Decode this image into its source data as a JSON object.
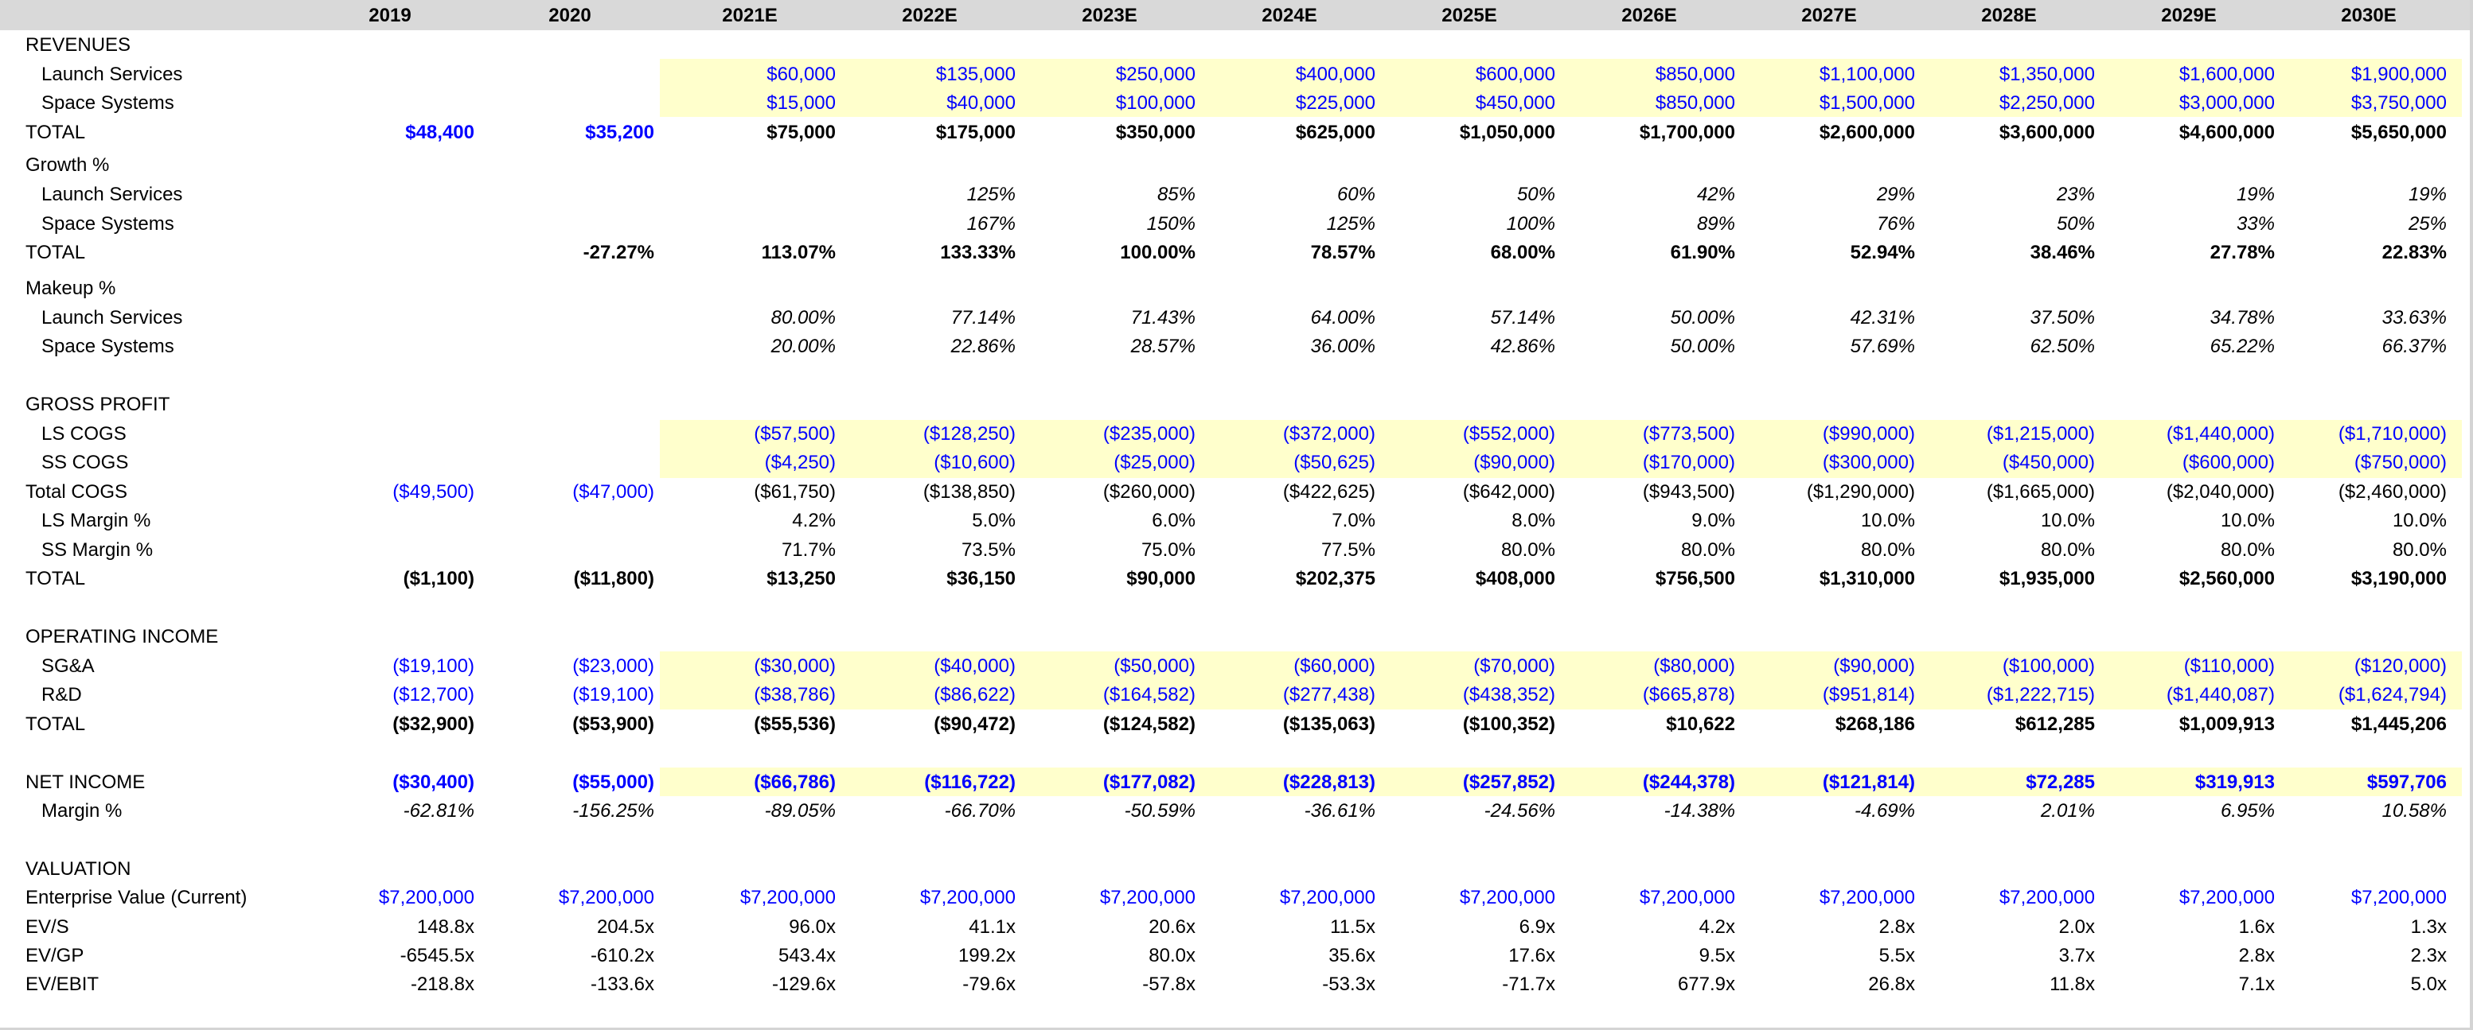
{
  "colors": {
    "input_blue": "#0000ff",
    "header_band": "#d9d9d9",
    "input_fill": "#ffffcc"
  },
  "years": [
    "2019",
    "2020",
    "2021E",
    "2022E",
    "2023E",
    "2024E",
    "2025E",
    "2026E",
    "2027E",
    "2028E",
    "2029E",
    "2030E"
  ],
  "rows": [
    {
      "key": "revenues",
      "label": "REVENUES",
      "indent": false,
      "style": "",
      "values": []
    },
    {
      "key": "launch-services-revenue",
      "label": "Launch Services",
      "indent": true,
      "style": "blue",
      "values": [
        "",
        "",
        "$60,000",
        "$135,000",
        "$250,000",
        "$400,000",
        "$600,000",
        "$850,000",
        "$1,100,000",
        "$1,350,000",
        "$1,600,000",
        "$1,900,000"
      ]
    },
    {
      "key": "space-systems-revenue",
      "label": "Space Systems",
      "indent": true,
      "style": "blue",
      "values": [
        "",
        "",
        "$15,000",
        "$40,000",
        "$100,000",
        "$225,000",
        "$450,000",
        "$850,000",
        "$1,500,000",
        "$2,250,000",
        "$3,000,000",
        "$3,750,000"
      ]
    },
    {
      "key": "total-revenue",
      "label": "TOTAL",
      "indent": false,
      "style": "bold",
      "values": [
        "$48,400",
        "$35,200",
        "$75,000",
        "$175,000",
        "$350,000",
        "$625,000",
        "$1,050,000",
        "$1,700,000",
        "$2,600,000",
        "$3,600,000",
        "$4,600,000",
        "$5,650,000"
      ],
      "blue_cols": [
        0,
        1
      ]
    },
    {
      "key": "growth",
      "label": "Growth %",
      "indent": false,
      "style": "",
      "values": []
    },
    {
      "key": "launch-services-growth",
      "label": "Launch Services",
      "indent": true,
      "style": "italic",
      "values": [
        "",
        "",
        "",
        "125%",
        "85%",
        "60%",
        "50%",
        "42%",
        "29%",
        "23%",
        "19%",
        "19%"
      ]
    },
    {
      "key": "space-systems-growth",
      "label": "Space Systems",
      "indent": true,
      "style": "italic",
      "values": [
        "",
        "",
        "",
        "167%",
        "150%",
        "125%",
        "100%",
        "89%",
        "76%",
        "50%",
        "33%",
        "25%"
      ]
    },
    {
      "key": "total-growth",
      "label": "TOTAL",
      "indent": false,
      "style": "bold",
      "values": [
        "",
        "-27.27%",
        "113.07%",
        "133.33%",
        "100.00%",
        "78.57%",
        "68.00%",
        "61.90%",
        "52.94%",
        "38.46%",
        "27.78%",
        "22.83%"
      ]
    },
    {
      "key": "makeup",
      "label": "Makeup %",
      "indent": false,
      "style": "",
      "values": []
    },
    {
      "key": "launch-services-makeup",
      "label": "Launch Services",
      "indent": true,
      "style": "italic",
      "values": [
        "",
        "",
        "80.00%",
        "77.14%",
        "71.43%",
        "64.00%",
        "57.14%",
        "50.00%",
        "42.31%",
        "37.50%",
        "34.78%",
        "33.63%"
      ]
    },
    {
      "key": "space-systems-makeup",
      "label": "Space Systems",
      "indent": true,
      "style": "italic",
      "values": [
        "",
        "",
        "20.00%",
        "22.86%",
        "28.57%",
        "36.00%",
        "42.86%",
        "50.00%",
        "57.69%",
        "62.50%",
        "65.22%",
        "66.37%"
      ]
    },
    {
      "key": "gross-profit",
      "label": "GROSS PROFIT",
      "indent": false,
      "style": "",
      "values": []
    },
    {
      "key": "ls-cogs",
      "label": "LS COGS",
      "indent": true,
      "style": "blue",
      "values": [
        "",
        "",
        "($57,500)",
        "($128,250)",
        "($235,000)",
        "($372,000)",
        "($552,000)",
        "($773,500)",
        "($990,000)",
        "($1,215,000)",
        "($1,440,000)",
        "($1,710,000)"
      ]
    },
    {
      "key": "ss-cogs",
      "label": "SS COGS",
      "indent": true,
      "style": "blue",
      "values": [
        "",
        "",
        "($4,250)",
        "($10,600)",
        "($25,000)",
        "($50,625)",
        "($90,000)",
        "($170,000)",
        "($300,000)",
        "($450,000)",
        "($600,000)",
        "($750,000)"
      ]
    },
    {
      "key": "total-cogs",
      "label": "Total COGS",
      "indent": false,
      "style": "",
      "values": [
        "($49,500)",
        "($47,000)",
        "($61,750)",
        "($138,850)",
        "($260,000)",
        "($422,625)",
        "($642,000)",
        "($943,500)",
        "($1,290,000)",
        "($1,665,000)",
        "($2,040,000)",
        "($2,460,000)"
      ],
      "blue_cols": [
        0,
        1
      ]
    },
    {
      "key": "ls-margin",
      "label": "LS Margin %",
      "indent": true,
      "style": "",
      "values": [
        "",
        "",
        "4.2%",
        "5.0%",
        "6.0%",
        "7.0%",
        "8.0%",
        "9.0%",
        "10.0%",
        "10.0%",
        "10.0%",
        "10.0%"
      ]
    },
    {
      "key": "ss-margin",
      "label": "SS Margin %",
      "indent": true,
      "style": "",
      "values": [
        "",
        "",
        "71.7%",
        "73.5%",
        "75.0%",
        "77.5%",
        "80.0%",
        "80.0%",
        "80.0%",
        "80.0%",
        "80.0%",
        "80.0%"
      ]
    },
    {
      "key": "total-gross-profit",
      "label": "TOTAL",
      "indent": false,
      "style": "bold",
      "values": [
        "($1,100)",
        "($11,800)",
        "$13,250",
        "$36,150",
        "$90,000",
        "$202,375",
        "$408,000",
        "$756,500",
        "$1,310,000",
        "$1,935,000",
        "$2,560,000",
        "$3,190,000"
      ]
    },
    {
      "key": "operating-income",
      "label": "OPERATING INCOME",
      "indent": false,
      "style": "",
      "values": []
    },
    {
      "key": "sga",
      "label": "SG&A",
      "indent": true,
      "style": "blue",
      "values": [
        "($19,100)",
        "($23,000)",
        "($30,000)",
        "($40,000)",
        "($50,000)",
        "($60,000)",
        "($70,000)",
        "($80,000)",
        "($90,000)",
        "($100,000)",
        "($110,000)",
        "($120,000)"
      ]
    },
    {
      "key": "rnd",
      "label": "R&D",
      "indent": true,
      "style": "blue",
      "values": [
        "($12,700)",
        "($19,100)",
        "($38,786)",
        "($86,622)",
        "($164,582)",
        "($277,438)",
        "($438,352)",
        "($665,878)",
        "($951,814)",
        "($1,222,715)",
        "($1,440,087)",
        "($1,624,794)"
      ]
    },
    {
      "key": "total-operating-income",
      "label": "TOTAL",
      "indent": false,
      "style": "bold",
      "values": [
        "($32,900)",
        "($53,900)",
        "($55,536)",
        "($90,472)",
        "($124,582)",
        "($135,063)",
        "($100,352)",
        "$10,622",
        "$268,186",
        "$612,285",
        "$1,009,913",
        "$1,445,206"
      ]
    },
    {
      "key": "net-income",
      "label": "NET INCOME",
      "indent": false,
      "style": "bold-blue",
      "label_style": "",
      "values": [
        "($30,400)",
        "($55,000)",
        "($66,786)",
        "($116,722)",
        "($177,082)",
        "($228,813)",
        "($257,852)",
        "($244,378)",
        "($121,814)",
        "$72,285",
        "$319,913",
        "$597,706"
      ]
    },
    {
      "key": "net-margin",
      "label": "Margin %",
      "indent": true,
      "style": "italic",
      "values": [
        "-62.81%",
        "-156.25%",
        "-89.05%",
        "-66.70%",
        "-50.59%",
        "-36.61%",
        "-24.56%",
        "-14.38%",
        "-4.69%",
        "2.01%",
        "6.95%",
        "10.58%"
      ]
    },
    {
      "key": "valuation",
      "label": "VALUATION",
      "indent": false,
      "style": "",
      "values": []
    },
    {
      "key": "enterprise-value",
      "label": "Enterprise Value (Current)",
      "indent": false,
      "style": "blue",
      "values": [
        "$7,200,000",
        "$7,200,000",
        "$7,200,000",
        "$7,200,000",
        "$7,200,000",
        "$7,200,000",
        "$7,200,000",
        "$7,200,000",
        "$7,200,000",
        "$7,200,000",
        "$7,200,000",
        "$7,200,000"
      ]
    },
    {
      "key": "ev-s",
      "label": "EV/S",
      "indent": false,
      "style": "",
      "values": [
        "148.8x",
        "204.5x",
        "96.0x",
        "41.1x",
        "20.6x",
        "11.5x",
        "6.9x",
        "4.2x",
        "2.8x",
        "2.0x",
        "1.6x",
        "1.3x"
      ]
    },
    {
      "key": "ev-gp",
      "label": "EV/GP",
      "indent": false,
      "style": "",
      "values": [
        "-6545.5x",
        "-610.2x",
        "543.4x",
        "199.2x",
        "80.0x",
        "35.6x",
        "17.6x",
        "9.5x",
        "5.5x",
        "3.7x",
        "2.8x",
        "2.3x"
      ]
    },
    {
      "key": "ev-ebit",
      "label": "EV/EBIT",
      "indent": false,
      "style": "",
      "values": [
        "-218.8x",
        "-133.6x",
        "-129.6x",
        "-79.6x",
        "-57.8x",
        "-53.3x",
        "-71.7x",
        "677.9x",
        "26.8x",
        "11.8x",
        "7.1x",
        "5.0x"
      ]
    }
  ]
}
